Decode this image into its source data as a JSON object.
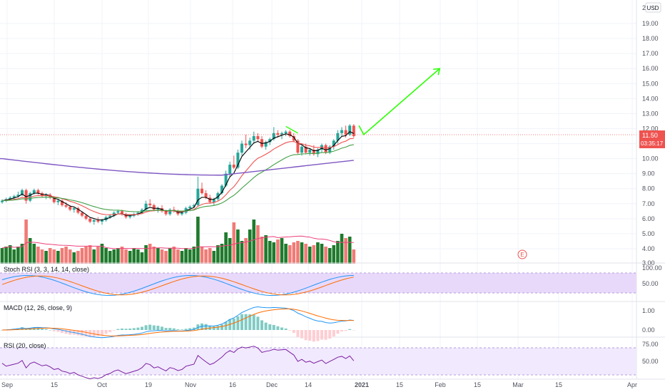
{
  "chart_data": {
    "type": "candlestick",
    "currency": "USD",
    "price_axis": {
      "ticks": [
        "19.00",
        "18.00",
        "17.00",
        "16.00",
        "15.00",
        "14.00",
        "13.00",
        "12.00",
        "11.00",
        "10.00",
        "9.00",
        "8.00",
        "7.00",
        "6.00",
        "5.00",
        "4.00"
      ],
      "top_label": "2",
      "bottom_label": "3.00",
      "last_price": "11.50",
      "countdown": "03:35:17",
      "range": [
        3,
        20
      ]
    },
    "time_axis": {
      "labels": [
        "Sep",
        "15",
        "Oct",
        "19",
        "Nov",
        "16",
        "Dec",
        "14",
        "2021",
        "15",
        "Feb",
        "15",
        "Mar",
        "15",
        "Apr"
      ]
    },
    "candles": [
      [
        7.1,
        7.3,
        7.0,
        7.2
      ],
      [
        7.2,
        7.4,
        7.1,
        7.3
      ],
      [
        7.3,
        7.5,
        7.2,
        7.4
      ],
      [
        7.4,
        7.6,
        7.3,
        7.5
      ],
      [
        7.5,
        7.8,
        7.4,
        7.6
      ],
      [
        7.6,
        8.0,
        7.5,
        7.9
      ],
      [
        7.9,
        8.0,
        7.0,
        7.2
      ],
      [
        7.2,
        7.8,
        7.1,
        7.7
      ],
      [
        7.7,
        8.0,
        7.6,
        7.9
      ],
      [
        7.9,
        8.0,
        7.6,
        7.7
      ],
      [
        7.7,
        7.8,
        7.4,
        7.5
      ],
      [
        7.5,
        7.7,
        7.3,
        7.6
      ],
      [
        7.6,
        7.7,
        7.3,
        7.4
      ],
      [
        7.4,
        7.5,
        7.0,
        7.1
      ],
      [
        7.1,
        7.3,
        6.9,
        7.2
      ],
      [
        7.2,
        7.3,
        6.8,
        6.9
      ],
      [
        6.9,
        7.1,
        6.7,
        6.8
      ],
      [
        6.8,
        6.9,
        6.5,
        6.6
      ],
      [
        6.6,
        6.8,
        6.4,
        6.7
      ],
      [
        6.7,
        6.8,
        6.3,
        6.4
      ],
      [
        6.4,
        6.5,
        6.1,
        6.2
      ],
      [
        6.2,
        6.3,
        5.9,
        6.0
      ],
      [
        6.0,
        6.1,
        5.7,
        5.8
      ],
      [
        5.8,
        6.0,
        5.6,
        5.9
      ],
      [
        5.9,
        6.1,
        5.7,
        5.8
      ],
      [
        5.8,
        6.0,
        5.6,
        5.9
      ],
      [
        5.9,
        6.2,
        5.8,
        6.1
      ],
      [
        6.1,
        6.3,
        6.0,
        6.2
      ],
      [
        6.2,
        6.5,
        6.1,
        6.4
      ],
      [
        6.4,
        6.6,
        6.3,
        6.5
      ],
      [
        6.5,
        6.6,
        6.2,
        6.3
      ],
      [
        6.3,
        6.4,
        6.0,
        6.1
      ],
      [
        6.1,
        6.3,
        6.0,
        6.2
      ],
      [
        6.2,
        6.4,
        6.1,
        6.3
      ],
      [
        6.3,
        6.5,
        6.2,
        6.4
      ],
      [
        6.4,
        6.7,
        6.3,
        6.6
      ],
      [
        6.6,
        7.2,
        6.5,
        7.0
      ],
      [
        7.0,
        7.3,
        6.8,
        6.9
      ],
      [
        6.9,
        7.0,
        6.5,
        6.6
      ],
      [
        6.6,
        6.8,
        6.4,
        6.7
      ],
      [
        6.7,
        6.9,
        6.4,
        6.5
      ],
      [
        6.5,
        6.6,
        6.2,
        6.3
      ],
      [
        6.3,
        6.7,
        6.2,
        6.6
      ],
      [
        6.6,
        6.8,
        6.4,
        6.5
      ],
      [
        6.5,
        6.6,
        6.2,
        6.3
      ],
      [
        6.3,
        6.5,
        6.2,
        6.4
      ],
      [
        6.4,
        6.8,
        6.3,
        6.7
      ],
      [
        6.7,
        6.9,
        6.5,
        6.8
      ],
      [
        6.8,
        7.0,
        6.7,
        6.9
      ],
      [
        6.9,
        8.8,
        6.8,
        8.0
      ],
      [
        8.0,
        8.4,
        7.6,
        7.7
      ],
      [
        7.7,
        7.9,
        7.3,
        7.4
      ],
      [
        7.4,
        7.6,
        7.0,
        7.1
      ],
      [
        7.1,
        7.4,
        6.9,
        7.3
      ],
      [
        7.3,
        7.8,
        7.2,
        7.7
      ],
      [
        7.7,
        8.3,
        7.6,
        8.2
      ],
      [
        8.2,
        9.2,
        8.1,
        9.0
      ],
      [
        9.0,
        9.8,
        8.8,
        9.6
      ],
      [
        9.6,
        10.2,
        9.3,
        9.4
      ],
      [
        9.4,
        10.6,
        9.3,
        10.4
      ],
      [
        10.4,
        11.2,
        10.2,
        11.0
      ],
      [
        11.0,
        11.6,
        10.7,
        10.9
      ],
      [
        10.9,
        11.4,
        10.6,
        11.2
      ],
      [
        11.2,
        11.8,
        11.0,
        11.5
      ],
      [
        11.5,
        11.7,
        11.1,
        11.3
      ],
      [
        11.3,
        11.5,
        10.7,
        10.8
      ],
      [
        10.8,
        11.2,
        10.6,
        11.1
      ],
      [
        11.1,
        11.4,
        10.9,
        11.3
      ],
      [
        11.3,
        12.1,
        11.2,
        11.7
      ],
      [
        11.7,
        11.9,
        11.4,
        11.6
      ],
      [
        11.6,
        11.8,
        11.3,
        11.7
      ],
      [
        11.7,
        11.9,
        11.5,
        11.8
      ],
      [
        11.8,
        11.9,
        11.4,
        11.5
      ],
      [
        11.5,
        11.7,
        11.1,
        11.2
      ],
      [
        11.2,
        11.3,
        10.3,
        10.4
      ],
      [
        10.4,
        10.9,
        10.2,
        10.8
      ],
      [
        10.8,
        11.0,
        10.3,
        10.4
      ],
      [
        10.4,
        10.7,
        10.2,
        10.6
      ],
      [
        10.6,
        10.9,
        10.2,
        10.3
      ],
      [
        10.3,
        10.7,
        10.1,
        10.6
      ],
      [
        10.6,
        11.0,
        10.4,
        10.9
      ],
      [
        10.9,
        11.0,
        10.3,
        10.4
      ],
      [
        10.4,
        10.9,
        10.3,
        10.8
      ],
      [
        10.8,
        11.3,
        10.6,
        11.2
      ],
      [
        11.2,
        11.9,
        11.0,
        11.7
      ],
      [
        11.7,
        12.1,
        11.5,
        11.9
      ],
      [
        11.9,
        12.2,
        11.4,
        11.6
      ],
      [
        11.6,
        12.3,
        11.5,
        12.2
      ],
      [
        12.2,
        12.3,
        11.4,
        11.5
      ]
    ],
    "volumes": [
      1.1,
      1.2,
      1.3,
      1.0,
      1.2,
      1.4,
      3.1,
      1.8,
      1.4,
      1.2,
      1.0,
      0.9,
      1.1,
      1.0,
      0.9,
      1.1,
      1.2,
      1.0,
      0.8,
      0.9,
      1.1,
      1.2,
      1.3,
      1.0,
      1.2,
      1.4,
      1.1,
      0.9,
      1.0,
      1.1,
      1.2,
      1.0,
      0.9,
      1.1,
      1.0,
      0.8,
      1.3,
      1.4,
      1.2,
      1.1,
      1.0,
      0.9,
      1.1,
      1.2,
      1.0,
      0.9,
      1.1,
      1.0,
      1.2,
      3.3,
      1.2,
      1.0,
      1.1,
      0.9,
      1.3,
      1.4,
      2.2,
      1.8,
      2.9,
      2.4,
      1.6,
      1.8,
      2.4,
      3.1,
      2.7,
      1.9,
      2.0,
      1.6,
      1.5,
      1.7,
      1.8,
      1.4,
      1.3,
      1.5,
      1.6,
      1.5,
      1.4,
      1.2,
      1.3,
      1.5,
      1.4,
      1.2,
      1.1,
      1.3,
      1.6,
      2.1,
      1.8,
      1.9,
      1.0
    ],
    "annotation_arrow": [
      [
        10.3,
        12.2
      ],
      [
        11.5,
        11.6
      ],
      [
        30.5,
        16.0
      ]
    ],
    "earnings_marker": "E",
    "indicators": [
      {
        "name": "Stoch RSI (3, 3, 14, 14, close)",
        "ticks": [
          "100.00",
          "50.00"
        ]
      },
      {
        "name": "MACD (12, 26, close, 9)",
        "ticks": [
          "1.00",
          "0.00"
        ]
      },
      {
        "name": "RSI (20, close)",
        "ticks": [
          "75.00",
          "50.00"
        ]
      }
    ],
    "colors": {
      "up": "#26a69a",
      "down": "#ef5350",
      "volume_up": "#1f7a2c",
      "volume_down": "#f07b76",
      "ema_short": "#000000",
      "ema_mid": "#ef5350",
      "ema_long": "#43a047",
      "ma_200": "#7e57c2",
      "arrow": "#2cff05",
      "band": "#e8d9fb"
    }
  }
}
